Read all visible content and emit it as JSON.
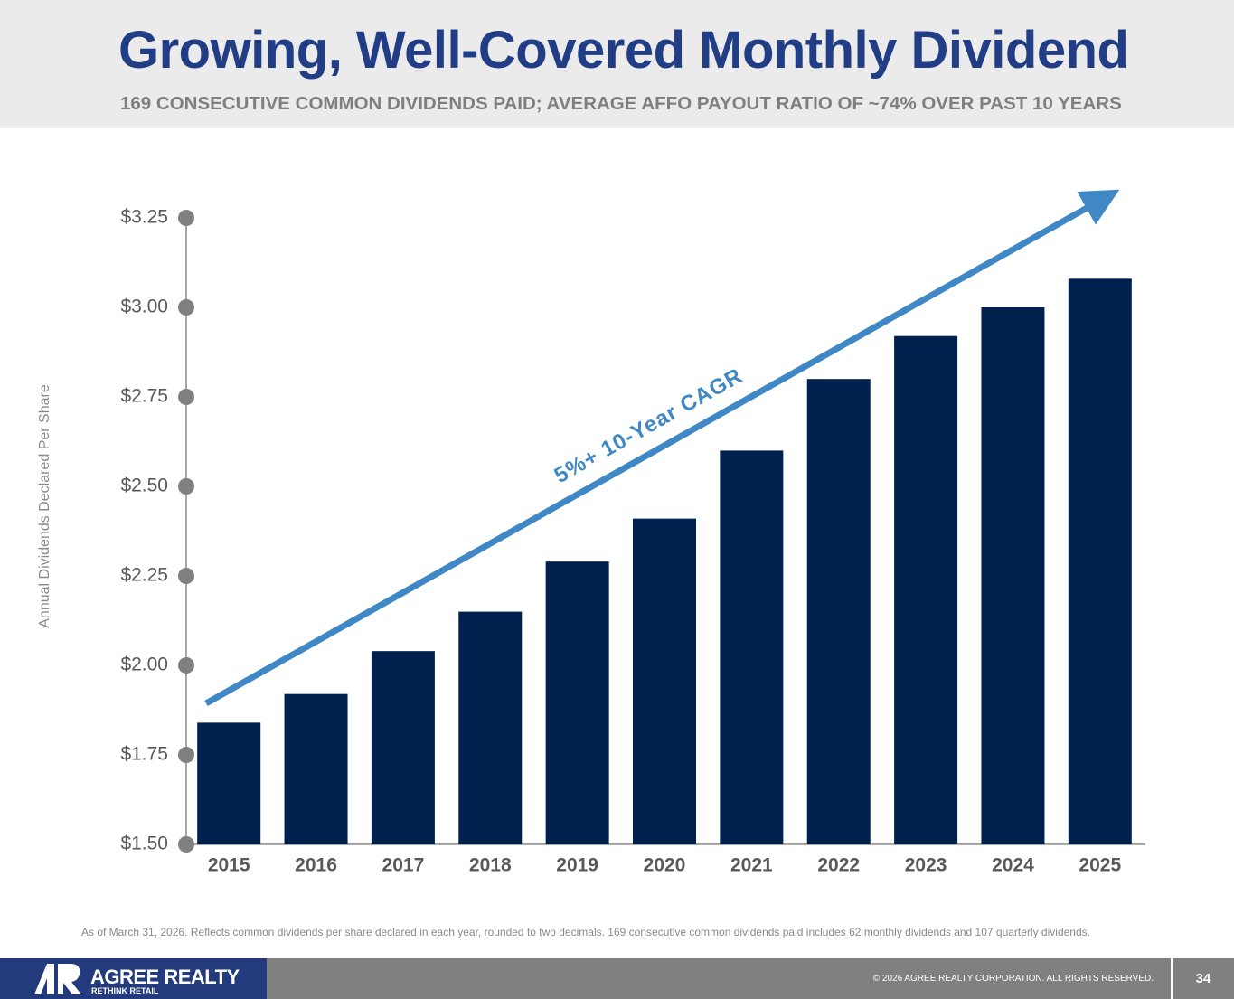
{
  "chart_data": {
    "type": "bar",
    "title": "Growing, Well-Covered Monthly Dividend",
    "subtitle": "169 CONSECUTIVE COMMON DIVIDENDS PAID; AVERAGE AFFO PAYOUT RATIO OF ~74% OVER PAST 10 YEARS",
    "y_label": "Annual Dividends Declared Per Share",
    "annotation": "5%+ 10-Year CAGR",
    "categories": [
      "2015",
      "2016",
      "2017",
      "2018",
      "2019",
      "2020",
      "2021",
      "2022",
      "2023",
      "2024",
      "2025"
    ],
    "values": [
      1.84,
      1.92,
      2.04,
      2.15,
      2.29,
      2.41,
      2.6,
      2.8,
      2.92,
      3.0,
      3.08
    ],
    "color": "#00214d",
    "ylim": [
      1.5,
      3.25
    ],
    "yticks": [
      {
        "value": 1.5,
        "label": "$1.50"
      },
      {
        "value": 1.75,
        "label": "$1.75"
      },
      {
        "value": 2.0,
        "label": "$2.00"
      },
      {
        "value": 2.25,
        "label": "$2.25"
      },
      {
        "value": 2.5,
        "label": "$2.50"
      },
      {
        "value": 2.75,
        "label": "$2.75"
      },
      {
        "value": 3.0,
        "label": "$3.00"
      },
      {
        "value": 3.25,
        "label": "$3.25"
      }
    ]
  },
  "footnote": "As of March 31, 2026. Reflects common dividends per share declared in each year, rounded to two decimals. 169 consecutive common dividends paid includes 62 monthly dividends and 107 quarterly dividends.",
  "footer": {
    "brand": "AGREE REALTY",
    "tagline": "RETHINK RETAIL",
    "copyright": "© 2026 AGREE REALTY CORPORATION. ALL RIGHTS RESERVED.",
    "page": "34"
  }
}
